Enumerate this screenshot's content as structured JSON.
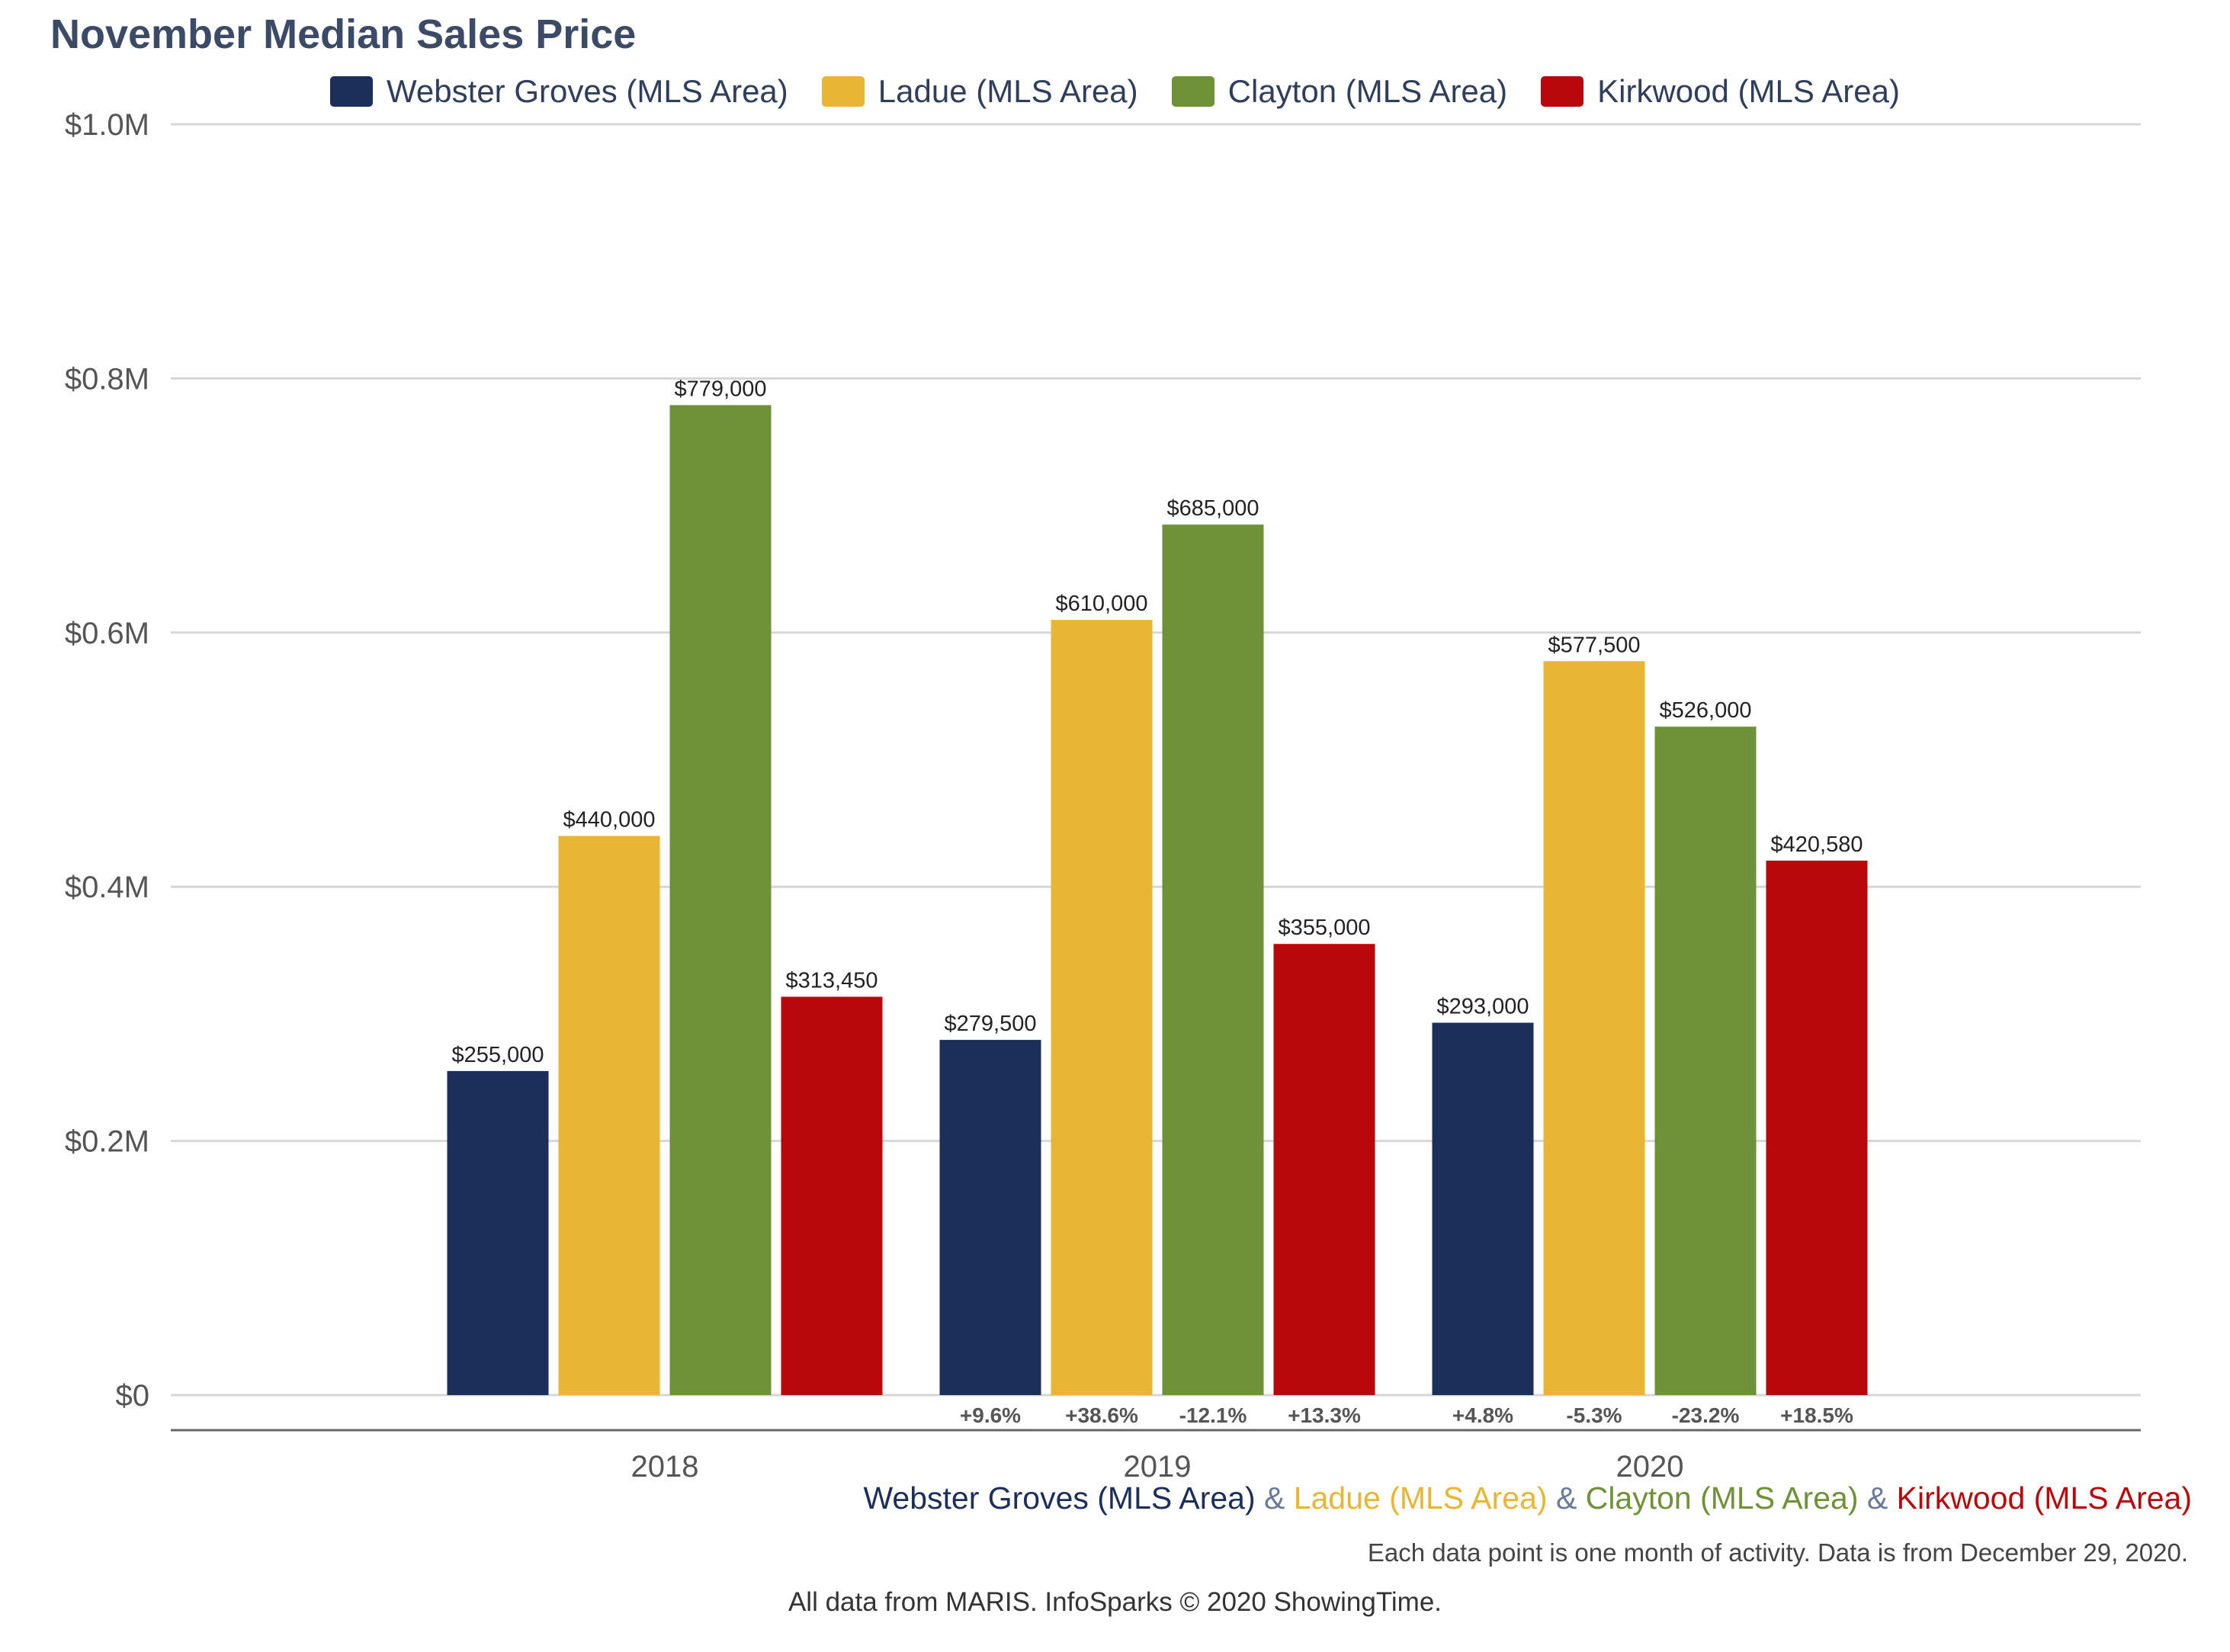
{
  "chart_data": {
    "type": "bar",
    "title": "November Median Sales Price",
    "categories": [
      "2018",
      "2019",
      "2020"
    ],
    "series": [
      {
        "name": "Webster Groves (MLS Area)",
        "color": "#1c2f5a",
        "values": [
          255000,
          279500,
          293000
        ],
        "value_labels": [
          "$255,000",
          "$279,500",
          "$293,000"
        ],
        "change_labels": [
          "",
          "+9.6%",
          "+4.8%"
        ]
      },
      {
        "name": "Ladue (MLS Area)",
        "color": "#e8b634",
        "values": [
          440000,
          610000,
          577500
        ],
        "value_labels": [
          "$440,000",
          "$610,000",
          "$577,500"
        ],
        "change_labels": [
          "",
          "+38.6%",
          "-5.3%"
        ]
      },
      {
        "name": "Clayton (MLS Area)",
        "color": "#6f9138",
        "values": [
          779000,
          685000,
          526000
        ],
        "value_labels": [
          "$779,000",
          "$685,000",
          "$526,000"
        ],
        "change_labels": [
          "",
          "-12.1%",
          "-23.2%"
        ]
      },
      {
        "name": "Kirkwood (MLS Area)",
        "color": "#b8080b",
        "values": [
          313450,
          355000,
          420580
        ],
        "value_labels": [
          "$313,450",
          "$355,000",
          "$420,580"
        ],
        "change_labels": [
          "",
          "+13.3%",
          "+18.5%"
        ]
      }
    ],
    "ylim": [
      0,
      1000000
    ],
    "yticks": [
      0,
      200000,
      400000,
      600000,
      800000,
      1000000
    ],
    "ytick_labels": [
      "$0",
      "$0.2M",
      "$0.4M",
      "$0.6M",
      "$0.8M",
      "$1.0M"
    ],
    "grid": true,
    "legend_position": "top-center"
  },
  "footer": {
    "amp": "&",
    "note": "Each data point is one month of activity. Data is from December 29, 2020.",
    "source": "All data from MARIS. InfoSparks © 2020 ShowingTime."
  }
}
